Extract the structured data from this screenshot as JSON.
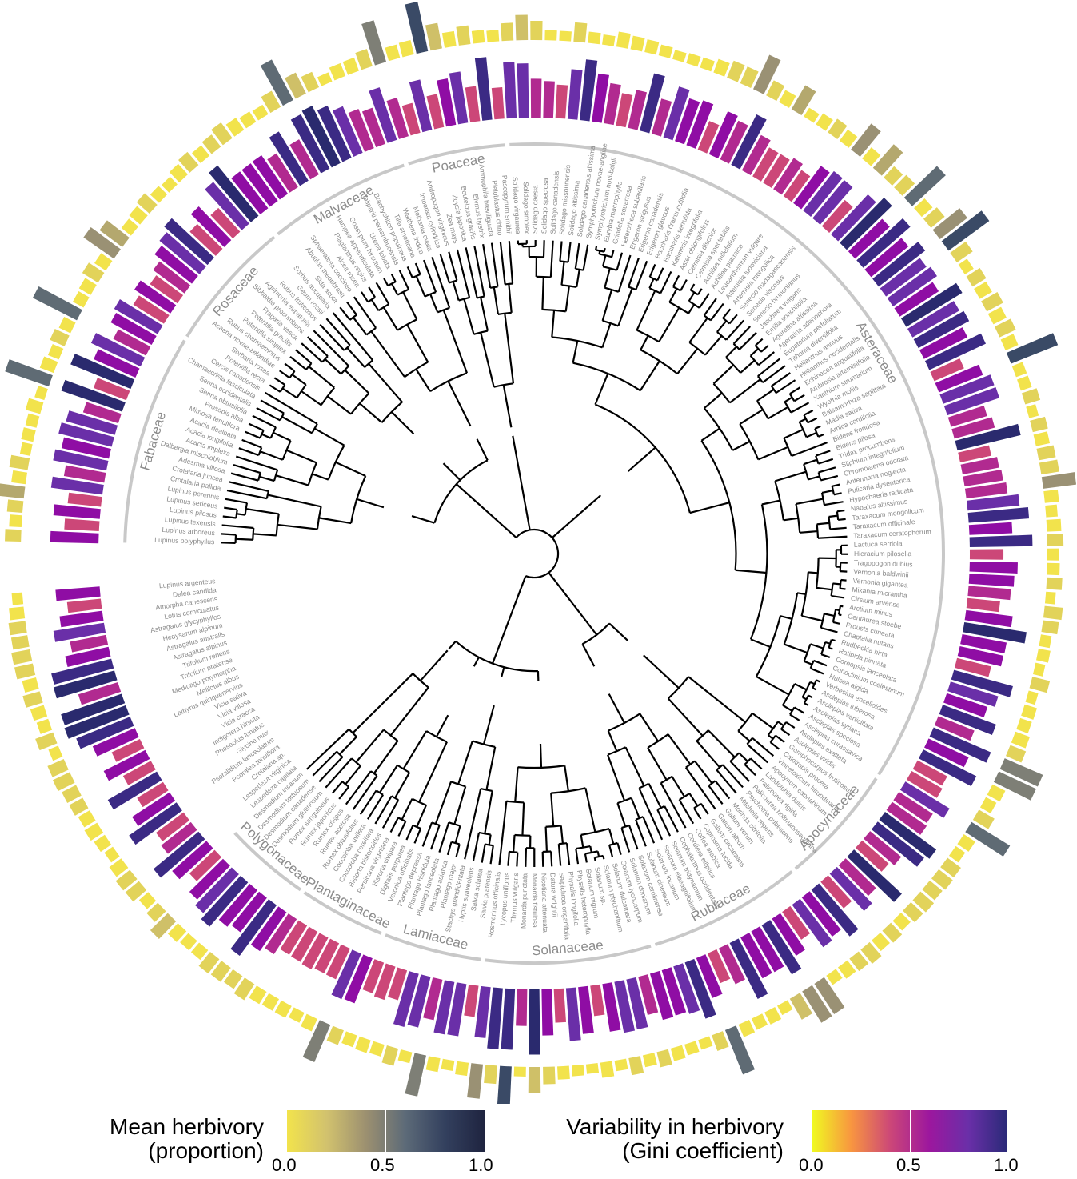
{
  "families": [
    "Fabaceae",
    "Rosaceae",
    "Malvaceae",
    "Poaceae",
    "Asteraceae",
    "Apocynaceae",
    "Rubiaceae",
    "Solanaceae",
    "Lamiaceae",
    "Plantaginaceae",
    "Polygonaceae"
  ],
  "tips": [
    "Lupinus polyphyllus",
    "Lupinus arboreus",
    "Lupinus texensis",
    "Lupinus pilosus",
    "Lupinus sericeus",
    "Lupinus perennis",
    "Crotalaria pallida",
    "Crotalaria juncea",
    "Adesmia villosa",
    "Dalbergia miscolobium",
    "Acacia implexa",
    "Acacia longifolia",
    "Acacia dealbata",
    "Mimosa tenuiflora",
    "Prosopis alba",
    "Senna obtusifolia",
    "Senna occidentalis",
    "Chamaecrista fasciculata",
    "Cercis canadensis",
    "Potentilla recta",
    "Sorbaria rosea",
    "Acaena novae-zelandiae",
    "Rubus chamaemorus",
    "Potentilla simplex",
    "Potentilla gracilis",
    "Fragaria vesca",
    "Sibbaldia procumbens",
    "Agrimonia eupatoria",
    "Rubus fruticosus",
    "Geum rossii",
    "Sorbus aucuparia",
    "Sida acuta",
    "Abutilon theophrasti",
    "Sphaeralcea coccinea",
    "Alcea rosea",
    "Plagianthus regius",
    "Hampea appendiculata",
    "Gossypium hirsutum",
    "Urena lobata",
    "Talipariti pernambucensis",
    "Brachychiton populneus",
    "Tilia americana",
    "Waltheria indica",
    "Melhania ovata",
    "Imperata cylindrica",
    "Andropogon virginicus",
    "Zea mays",
    "Zoysia japonica",
    "Bouteloua gracilis",
    "Elymus hystrix",
    "Ammophila breviligulata",
    "Pleioblastus chino",
    "Pascopyrum smithii",
    "Solidago virgaurea",
    "Solidago simplex",
    "Solidago caesia",
    "Solidago speciosa",
    "Solidago canadensis",
    "Solidago missouriensis",
    "Solidago altissima",
    "Solidago canadensis altissima",
    "Symphyotrichum novae-angliae",
    "Symphyotrichum novi-belgii",
    "Eurybia macrophylla",
    "Grindelia squarrosa",
    "Heterotheca subaxillaris",
    "Erigeron strigosus",
    "Erigeron canadensis",
    "Erigeron glaucus",
    "Baccharis dracunculifolia",
    "Baccharis serrulata",
    "Kalimeris integrifolia",
    "Aster oblongifolius",
    "Celmisia discolor",
    "Celmisia spectabilis",
    "Achillea millefolium",
    "Achillea ptarmica",
    "Leucanthemum vulgare",
    "Artemisia ludoviciana",
    "Artemisia mongolica",
    "Senecio madagascariensis",
    "Senecio viscosus",
    "Senecio brunonianus",
    "Jacobaea vulgaris",
    "Emilia sonchifolia",
    "Ageratina altissima",
    "Ageratina adenophora",
    "Eupatorium perfoliatum",
    "Tithonia diversifolia",
    "Helianthus annuus",
    "Helianthus occidentalis",
    "Echinacea angustifolia",
    "Ambrosia artemisiifolia",
    "Xanthium strumarium",
    "Wyethia mollis",
    "Balsamorhiza sagittata",
    "Madia sativa",
    "Arnica cordifolia",
    "Bidens frondosa",
    "Bidens pilosa",
    "Tridax procumbens",
    "Silphium integrifolium",
    "Chromolaena odorata",
    "Antennaria neglecta",
    "Pulicaria dysenterica",
    "Hypochaeris radicata",
    "Nabalus altissimus",
    "Taraxacum mongolicum",
    "Taraxacum officinale",
    "Taraxacum ceratophorum",
    "Lactuca serriola",
    "Hieracium pilosella",
    "Tragopogon dubius",
    "Vernonia baldwinii",
    "Vernonia gigantea",
    "Mikania micrantha",
    "Cirsium arvense",
    "Arctium minus",
    "Centaurea stoebe",
    "Prousts cuneata",
    "Chaptalia nutans",
    "Rudbeckia hirta",
    "Ratibida pinnata",
    "Coreopsis lanceolata",
    "Conoclinium coelestinum",
    "Hulsea algida",
    "Verbesina encelioides",
    "Asclepias tuberosa",
    "Asclepias verticillata",
    "Asclepias syriaca",
    "Asclepias speciosa",
    "Asclepias curassavica",
    "Asclepias exaltata",
    "Asclepias viridis",
    "Gomphocarpus fruticosus",
    "Calotropis procera",
    "Vincetoxicum hirundinaria",
    "Apocynum cannabinum",
    "Landolphia dulcis",
    "Palicourea rigida",
    "Palicourea hoffmannseggiana",
    "Psychotria pubescens",
    "Mitchella repens",
    "Morinda citrifolia",
    "Galium verum",
    "Galium album",
    "Galium circaezans",
    "Coprosma lucida",
    "Coffea arabica",
    "Cordiera elliptica",
    "Cephalanthus occidentalis",
    "Solanum tridynamum",
    "Solanum elaeagnifolium",
    "Solanum incanum",
    "Solanum cinereum",
    "Solanum carolinense",
    "Solanum donianum",
    "Solanum lycocarpum",
    "Solanum dulcamara",
    "Solanum ptychanthum",
    "Solanum sp.",
    "Solanum nigrum",
    "Physalis heterophylla",
    "Physalis longifolia",
    "Salpichroa origanifolia",
    "Datura wrightii",
    "Nicotiana attenuata",
    "Monarda fistulosa",
    "Monarda punctata",
    "Thymus vulgaris",
    "Lycopus uniflorus",
    "Rosmarinus officinalis",
    "Salvia pratensis",
    "Salvia sclarea",
    "Hyptis suaveolens",
    "Stachys grandidentata",
    "Plantago major",
    "Plantago asiatica",
    "Plantago lanceolata",
    "Plantago hispidula",
    "Plantago depressa",
    "Veronica officinalis",
    "Digitalis purpurea",
    "Bistorta vivipara",
    "Persicaria virginiana",
    "Bistorta bistortoides",
    "Coccoloba cereifera",
    "Coccoloba uvifera",
    "Rumex obtusifolius",
    "Rumex acetosa",
    "Rumex crispus",
    "Rumex japonicus",
    "Rumex sanguineus",
    "Desmodium glutinosum",
    "Desmodium canadense",
    "Desmodium tortuosum",
    "Desmodium incanum",
    "Lespedeza capitata",
    "Lespedeza virginica",
    "Crotalaria sp.",
    "Psoralea tenuiflora",
    "Psoralidium lanceolatum",
    "Glycine max",
    "Phaseolus lunatus",
    "Indigofera hirsuta",
    "Vicia cracca",
    "Vicia villosa",
    "Vicia sativa",
    "Lathyrus quinquenervius",
    "Melilotus albus",
    "Medicago polymorpha",
    "Trifolium pratense",
    "Trifolium repens",
    "Astragalus alpinus",
    "Astragalus australis",
    "Hedysarum alpinum",
    "Astragalus glycyphyllos",
    "Lotus corniculatus",
    "Amorpha canescens",
    "Dalea candida",
    "Lupinus argenteus"
  ],
  "legend": {
    "mean": {
      "title_line1": "Mean herbivory",
      "title_line2": "(proportion)",
      "ticks": [
        "0.0",
        "0.5",
        "1.0"
      ]
    },
    "gini": {
      "title_line1": "Variability in herbivory",
      "title_line2": "(Gini coefficient)",
      "ticks": [
        "0.0",
        "0.5",
        "1.0"
      ]
    }
  }
}
